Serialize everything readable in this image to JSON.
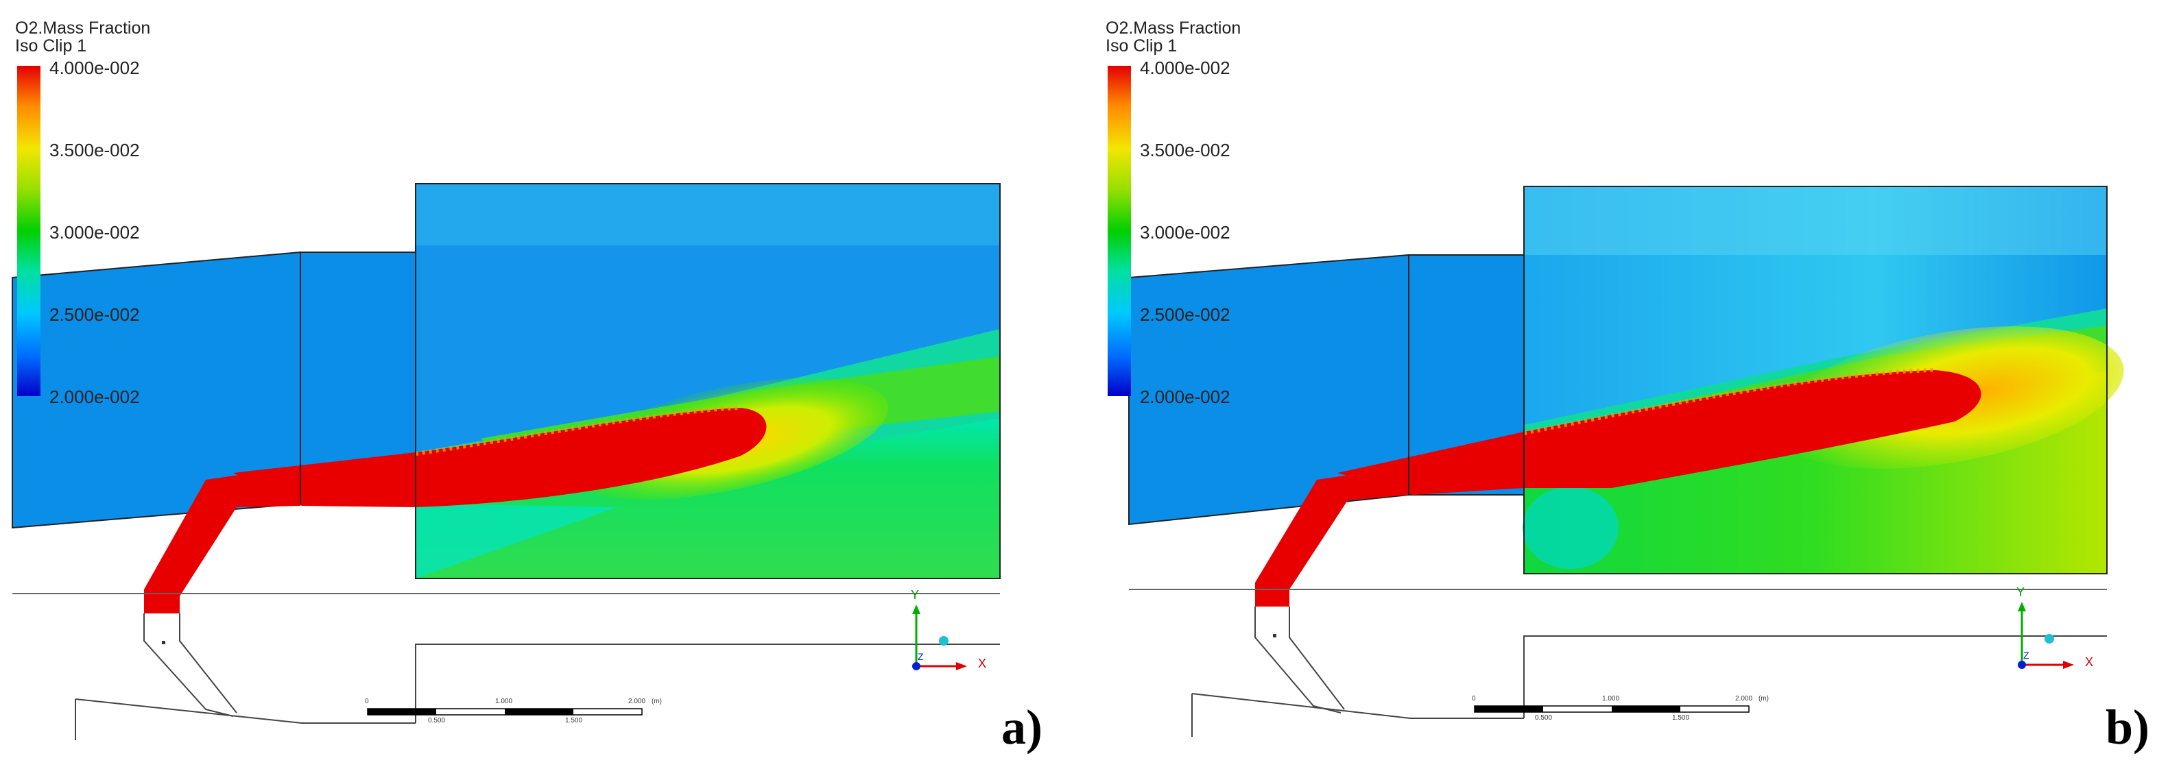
{
  "panels": [
    {
      "id": "a",
      "label": "a)",
      "variable": "O2.Mass Fraction",
      "object": "Iso Clip 1",
      "legend_ticks": [
        "4.000e-002",
        "3.500e-002",
        "3.000e-002",
        "2.500e-002",
        "2.000e-002"
      ],
      "scale_labels": [
        "0",
        "0.500",
        "1.000",
        "1.500",
        "2.000",
        "(m)"
      ],
      "axis_labels": {
        "y": "Y",
        "x": "X",
        "z": "Z"
      }
    },
    {
      "id": "b",
      "label": "b)",
      "variable": "O2.Mass Fraction",
      "object": "Iso Clip 1",
      "legend_ticks": [
        "4.000e-002",
        "3.500e-002",
        "3.000e-002",
        "2.500e-002",
        "2.000e-002"
      ],
      "scale_labels": [
        "0",
        "0.500",
        "1.000",
        "1.500",
        "2.000",
        "(m)"
      ],
      "axis_labels": {
        "y": "Y",
        "x": "X",
        "z": "Z"
      }
    }
  ],
  "legend_colors": {
    "max": "#e40000",
    "mid": "#00d000",
    "min": "#0000c8"
  }
}
